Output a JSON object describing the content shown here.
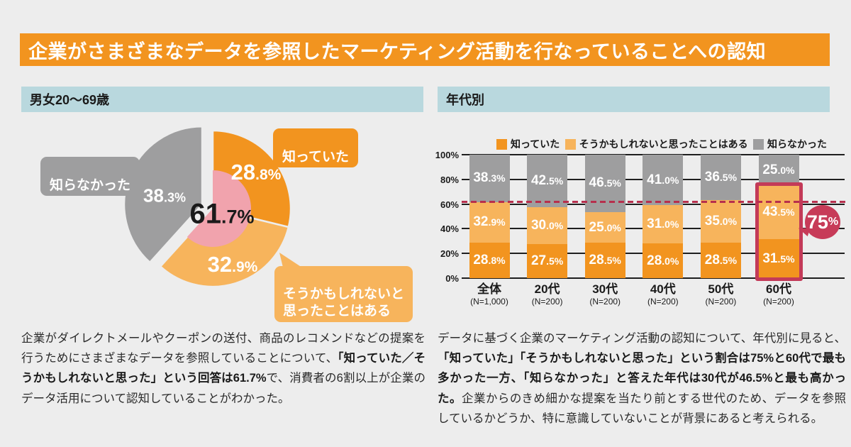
{
  "page": {
    "background": "#ededed"
  },
  "title": {
    "text": "企業がさまざまなデータを参照したマーケティング活動を行なっていることへの認知",
    "bg": "#f2941f",
    "fg": "#ffffff"
  },
  "colors": {
    "knew": "#f2941f",
    "maybe": "#f7b45c",
    "unknown": "#9e9e9f",
    "pink": "#f1a3ad",
    "crimson": "#c33a58",
    "header_blue": "#b9d8de"
  },
  "left_panel": {
    "header": "男女20〜69歳",
    "callouts": {
      "knew": "知っていた",
      "maybe": "そうかもしれないと\n思ったことはある",
      "unknown": "知らなかった"
    },
    "paragraph": [
      {
        "text": "企業がダイレクトメールやクーポンの送付、商品のレコメンドなどの提案を行うためにさまざまなデータを参照していることについて、",
        "bold": false
      },
      {
        "text": "「知っていた／そうかもしれないと思った」という回答は61.7%",
        "bold": true
      },
      {
        "text": "で、消費者の6割以上が企業のデータ活用について認知していることがわかった。",
        "bold": false
      }
    ]
  },
  "right_panel": {
    "header": "年代別",
    "paragraph": [
      {
        "text": "データに基づく企業のマーケティング活動の認知について、年代別に見ると、",
        "bold": false
      },
      {
        "text": "「知っていた」「そうかもしれないと思った」という割合は75%と60代で最も多かった一方、「知らなかった」と答えた年代は30代が46.5%と最も高かった。",
        "bold": true
      },
      {
        "text": "企業からのきめ細かな提案を当たり前とする世代のため、データを参照しているかどうか、特に意識していないことが背景にあると考えられる。",
        "bold": false
      }
    ]
  },
  "chart_data": [
    {
      "type": "pie",
      "title": "男女20〜69歳",
      "slices": [
        {
          "label": "知っていた",
          "value": 28.8,
          "color": "#f2941f",
          "exploded": false
        },
        {
          "label": "そうかもしれないと思ったことはある",
          "value": 32.9,
          "color": "#f7b45c",
          "exploded": false
        },
        {
          "label": "知らなかった",
          "value": 38.3,
          "color": "#9e9e9f",
          "exploded": true
        }
      ],
      "center_overlay": {
        "value": 61.7,
        "color": "#f1a3ad"
      }
    },
    {
      "type": "bar",
      "stacked": true,
      "title": "年代別",
      "categories": [
        "全体",
        "20代",
        "30代",
        "40代",
        "50代",
        "60代"
      ],
      "category_notes": [
        "(N=1,000)",
        "(N=200)",
        "(N=200)",
        "(N=200)",
        "(N=200)",
        "(N=200)"
      ],
      "series": [
        {
          "name": "知っていた",
          "color": "#f2941f",
          "values": [
            28.8,
            27.5,
            28.5,
            28.0,
            28.5,
            31.5
          ]
        },
        {
          "name": "そうかもしれないと思ったことはある",
          "color": "#f7b45c",
          "values": [
            32.9,
            30.0,
            25.0,
            31.0,
            35.0,
            43.5
          ]
        },
        {
          "name": "知らなかった",
          "color": "#9e9e9f",
          "values": [
            38.3,
            42.5,
            46.5,
            41.0,
            36.5,
            25.0
          ]
        }
      ],
      "ylim": [
        0,
        100
      ],
      "yticks": [
        "0%",
        "20%",
        "40%",
        "60%",
        "80%",
        "100%"
      ],
      "grid": true,
      "legend_position": "top",
      "reference_line": 61.7,
      "highlight": {
        "category": "60代",
        "upto": 75,
        "total_label": "75%"
      }
    }
  ]
}
